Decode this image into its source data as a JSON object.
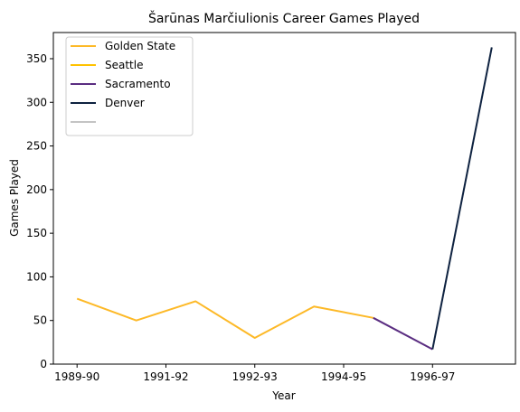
{
  "chart_data": {
    "type": "line",
    "title": "Šarūnas Marčiulionis Career Games Played",
    "xlabel": "Year",
    "ylabel": "Games Played",
    "xlim": [
      -0.4,
      7.4
    ],
    "ylim": [
      0,
      380
    ],
    "x_ticks": [
      {
        "x": 0,
        "label": "1989-90"
      },
      {
        "x": 1.5,
        "label": "1991-92"
      },
      {
        "x": 3,
        "label": "1992-93"
      },
      {
        "x": 4.5,
        "label": "1994-95"
      },
      {
        "x": 6,
        "label": "1996-97"
      }
    ],
    "y_ticks": [
      0,
      50,
      100,
      150,
      200,
      250,
      300,
      350
    ],
    "grid": false,
    "legend_position": "top-left",
    "series": [
      {
        "name": "Golden State",
        "color": "#FDB927",
        "points": [
          {
            "x": 0,
            "y": 75
          },
          {
            "x": 1,
            "y": 50
          },
          {
            "x": 2,
            "y": 72
          },
          {
            "x": 3,
            "y": 30
          },
          {
            "x": 4,
            "y": 66
          },
          {
            "x": 5,
            "y": 53
          }
        ]
      },
      {
        "name": "Seattle",
        "color": "#FFC200",
        "points": []
      },
      {
        "name": "Sacramento",
        "color": "#5A2D81",
        "points": [
          {
            "x": 5,
            "y": 53
          },
          {
            "x": 6,
            "y": 17
          }
        ]
      },
      {
        "name": "Denver",
        "color": "#0E2240",
        "points": [
          {
            "x": 6,
            "y": 17
          },
          {
            "x": 7,
            "y": 363
          }
        ]
      },
      {
        "name": "",
        "color": "#C4C4C4",
        "points": []
      }
    ]
  }
}
